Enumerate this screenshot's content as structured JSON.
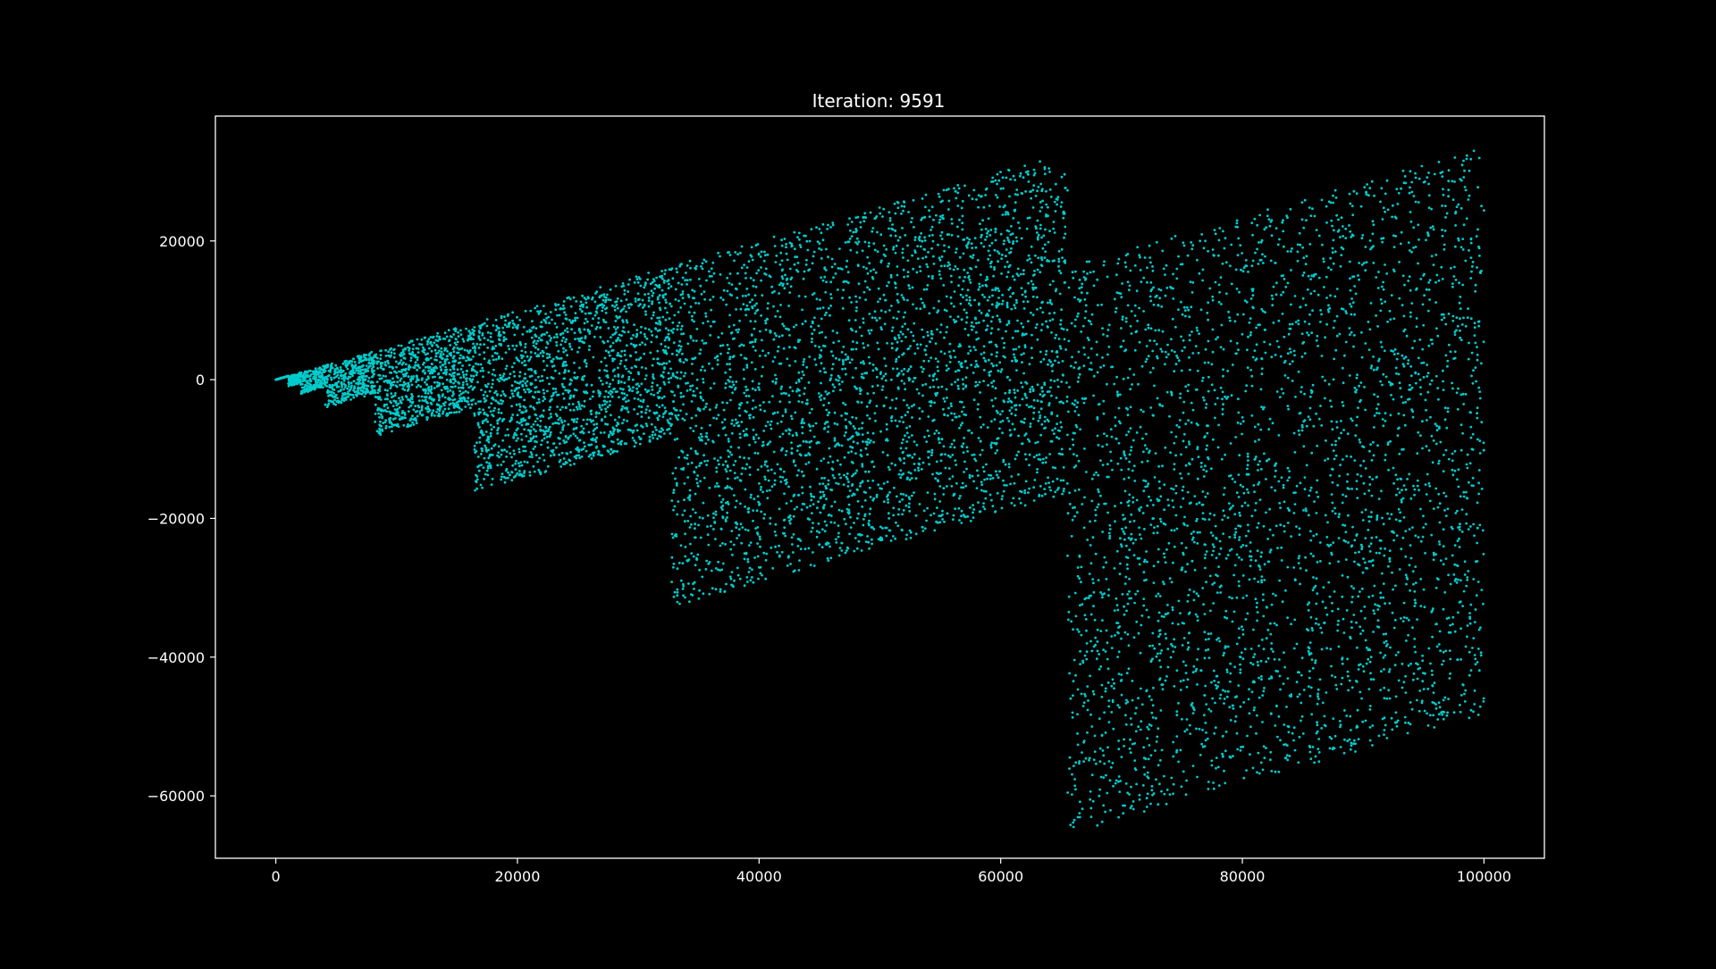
{
  "chart_data": {
    "type": "scatter",
    "title": "Iteration: 9591",
    "xlabel": "",
    "ylabel": "",
    "xlim": [
      -5000,
      105000
    ],
    "ylim": [
      -69000,
      38000
    ],
    "xticks": [
      0,
      20000,
      40000,
      60000,
      80000,
      100000
    ],
    "xtick_labels": [
      "0",
      "20000",
      "40000",
      "60000",
      "80000",
      "100000"
    ],
    "yticks": [
      20000,
      0,
      -20000,
      -40000,
      -60000
    ],
    "ytick_labels": [
      "20000",
      "0",
      "−20000",
      "−40000",
      "−60000"
    ],
    "grid": false,
    "legend": "none",
    "point_count_shown": 9591,
    "structure": "Repeated sawtooth parallelogram bands; band k spans x in [2^k, 2^(k+1)) with y between -x and x/2 drifting upward along the band",
    "bands": [
      {
        "x_start": 0,
        "x_end": 1024,
        "y_bottom_at_start": 0,
        "y_top_at_end": 512
      },
      {
        "x_start": 1024,
        "x_end": 2048,
        "y_bottom_at_start": -1024,
        "y_top_at_end": 1024
      },
      {
        "x_start": 2048,
        "x_end": 4096,
        "y_bottom_at_start": -2048,
        "y_top_at_end": 2048
      },
      {
        "x_start": 4096,
        "x_end": 8192,
        "y_bottom_at_start": -4096,
        "y_top_at_end": 4096
      },
      {
        "x_start": 8192,
        "x_end": 16384,
        "y_bottom_at_start": -8192,
        "y_top_at_end": 8192
      },
      {
        "x_start": 16384,
        "x_end": 32768,
        "y_bottom_at_start": -16384,
        "y_top_at_end": 16384
      },
      {
        "x_start": 32768,
        "x_end": 65536,
        "y_bottom_at_start": -32768,
        "y_top_at_end": 32768
      },
      {
        "x_start": 65536,
        "x_end": 100000,
        "y_bottom_at_start": -65536,
        "y_top_at_end": 33500
      }
    ]
  },
  "colors": {
    "background": "#000000",
    "axes_frame": "#ffffff",
    "text": "#ffffff",
    "marker": "#00cccc"
  }
}
